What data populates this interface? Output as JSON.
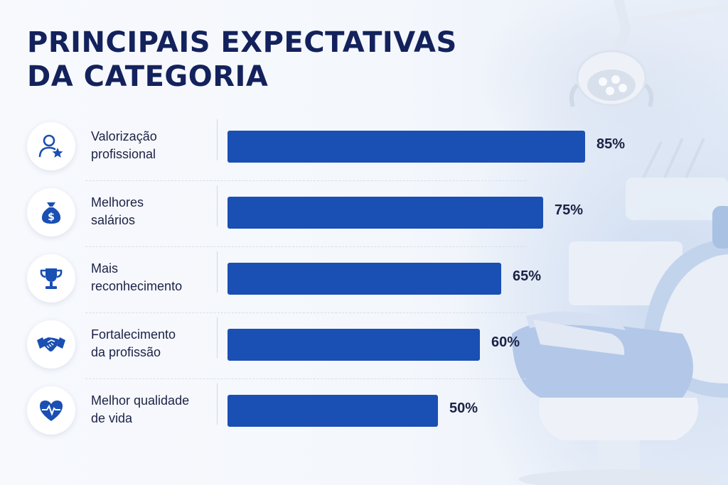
{
  "title_lines": [
    "PRINCIPAIS EXPECTATIVAS",
    "DA CATEGORIA"
  ],
  "chart_data": {
    "type": "bar",
    "orientation": "horizontal",
    "categories": [
      "Valorização profissional",
      "Melhores salários",
      "Mais reconhecimento",
      "Fortalecimento da profissão",
      "Melhor qualidade de vida"
    ],
    "label_lines": [
      [
        "Valorização",
        "profissional"
      ],
      [
        "Melhores",
        "salários"
      ],
      [
        "Mais",
        "reconhecimento"
      ],
      [
        "Fortalecimento",
        "da profissão"
      ],
      [
        "Melhor qualidade",
        "de vida"
      ]
    ],
    "values": [
      85,
      75,
      65,
      60,
      50
    ],
    "value_labels": [
      "85%",
      "75%",
      "65%",
      "60%",
      "50%"
    ],
    "icons": [
      "professional-user-star-icon",
      "money-bag-icon",
      "trophy-icon",
      "handshake-icon",
      "heart-pulse-icon"
    ],
    "bar_color": "#1a4fb3",
    "title": "PRINCIPAIS EXPECTATIVAS DA CATEGORIA",
    "xlabel": "",
    "ylabel": "",
    "xlim": [
      0,
      100
    ],
    "grid": false,
    "legend": "none"
  }
}
